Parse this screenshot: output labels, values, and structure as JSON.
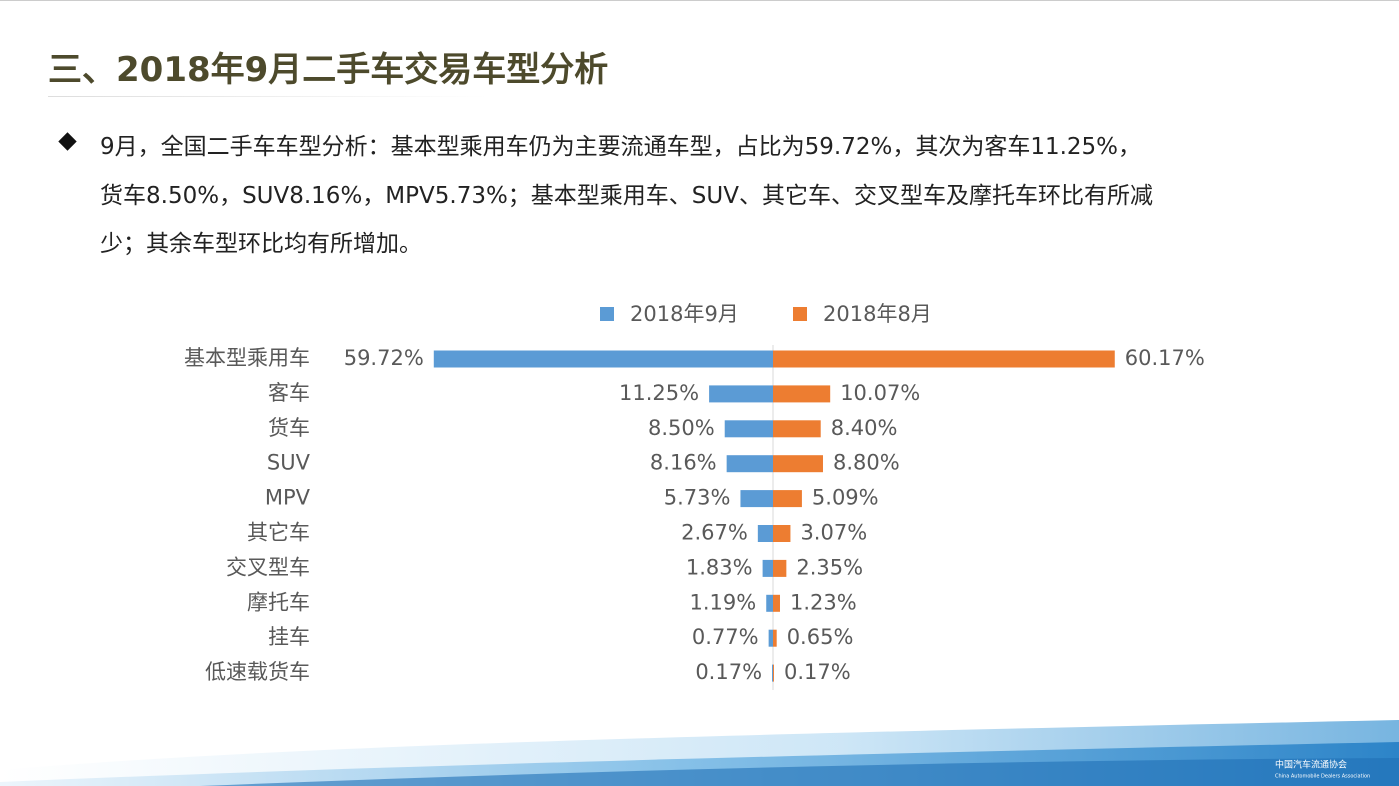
{
  "header": {
    "title": "三、2018年9月二手车交易车型分析"
  },
  "bullet": {
    "lines": [
      "9月，全国二手车车型分析：基本型乘用车仍为主要流通车型，占比为59.72%，其次为客车11.25%，",
      "货车8.50%，SUV8.16%，MPV5.73%；基本型乘用车、SUV、其它车、交叉型车及摩托车环比有所减",
      "少；其余车型环比均有所增加。"
    ]
  },
  "chart_data": {
    "type": "butterfly-bar",
    "categories": [
      "基本型乘用车",
      "客车",
      "货车",
      "SUV",
      "MPV",
      "其它车",
      "交叉型车",
      "摩托车",
      "挂车",
      "低速载货车"
    ],
    "series": [
      {
        "name": "2018年9月",
        "color": "#5b9bd5",
        "values": [
          59.72,
          11.25,
          8.5,
          8.16,
          5.73,
          2.67,
          1.83,
          1.19,
          0.77,
          0.17
        ],
        "value_labels": [
          "59.72%",
          "11.25%",
          "8.50%",
          "8.16%",
          "5.73%",
          "2.67%",
          "1.83%",
          "1.19%",
          "0.77%",
          "0.17%"
        ]
      },
      {
        "name": "2018年8月",
        "color": "#ed7d31",
        "values": [
          60.17,
          10.07,
          8.4,
          8.8,
          5.09,
          3.07,
          2.35,
          1.23,
          0.65,
          0.17
        ],
        "value_labels": [
          "60.17%",
          "10.07%",
          "8.40%",
          "8.80%",
          "5.09%",
          "3.07%",
          "2.35%",
          "1.23%",
          "0.65%",
          "0.17%"
        ]
      }
    ],
    "legend": "top"
  },
  "logo": {
    "name": "中国汽车流通协会",
    "subtitle": "China Automobile Dealers Association"
  }
}
